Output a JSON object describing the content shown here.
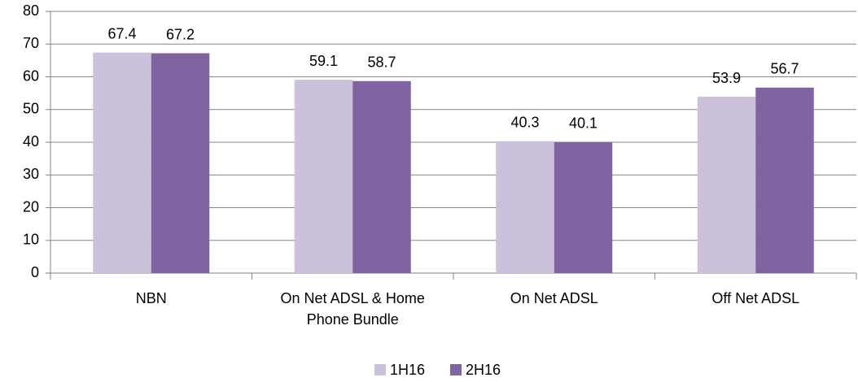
{
  "chart_data": {
    "type": "bar",
    "categories": [
      "NBN",
      "On Net ADSL & Home Phone Bundle",
      "On Net ADSL",
      "Off Net ADSL"
    ],
    "series": [
      {
        "name": "1H16",
        "color": "#ccc1da",
        "values": [
          67.4,
          59.1,
          40.3,
          53.9
        ]
      },
      {
        "name": "2H16",
        "color": "#8064a2",
        "values": [
          67.2,
          58.7,
          40.1,
          56.7
        ]
      }
    ],
    "ylim": [
      0,
      80
    ],
    "yticks": [
      0,
      10,
      20,
      30,
      40,
      50,
      60,
      70,
      80
    ],
    "grid": true,
    "legend": "bottom"
  }
}
